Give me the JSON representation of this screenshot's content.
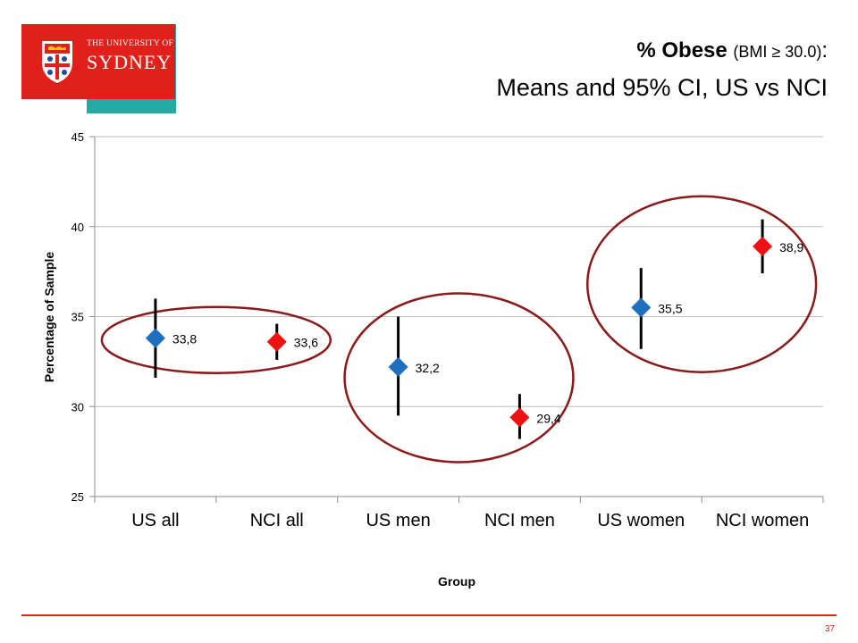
{
  "header": {
    "logo": {
      "line1": "THE UNIVERSITY OF",
      "line2": "SYDNEY",
      "accent": "#e0211b",
      "icon": "university-crest"
    },
    "title_bold": "% Obese",
    "title_small": "(BMI ≥ 30.0)",
    "title_colon": ":",
    "subtitle": "Means and 95% CI,  US vs NCI",
    "bar_color": "#27a9a3"
  },
  "chart_data": {
    "type": "scatter",
    "categories": [
      "US all",
      "NCI all",
      "US men",
      "NCI men",
      "US women",
      "NCI women"
    ],
    "means": [
      33.8,
      33.6,
      32.2,
      29.4,
      35.5,
      38.9
    ],
    "ci_low": [
      31.6,
      32.6,
      29.5,
      28.2,
      33.2,
      37.4
    ],
    "ci_high": [
      36.0,
      34.6,
      35.0,
      30.7,
      37.7,
      40.4
    ],
    "labels": [
      "33,8",
      "33,6",
      "32,2",
      "29,4",
      "35,5",
      "38,9"
    ],
    "marker_colors": [
      "#1f6fbf",
      "#ee1111",
      "#1f6fbf",
      "#ee1111",
      "#1f6fbf",
      "#ee1111"
    ],
    "xlabel": "Group",
    "ylabel": "Percentage of Sample",
    "ylim": [
      25,
      45
    ],
    "yticks": [
      25,
      30,
      35,
      40,
      45
    ],
    "grid": true,
    "ellipse_color": "#8b1a1a",
    "highlight_pairs": [
      [
        0,
        1
      ],
      [
        2,
        3
      ],
      [
        4,
        5
      ]
    ]
  },
  "footer": {
    "page_number": "37",
    "line_color": "#e0211b"
  }
}
